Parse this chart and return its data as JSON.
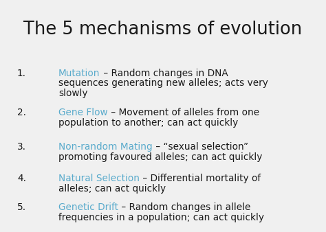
{
  "title": "The 5 mechanisms of evolution",
  "background_color": "#f0f0f0",
  "title_color": "#1a1a1a",
  "title_fontsize": 18.5,
  "body_fontsize": 9.8,
  "number_color": "#1a1a1a",
  "highlight_color": "#5aabcc",
  "text_color": "#1a1a1a",
  "items": [
    {
      "number": "1.",
      "keyword": "Mutation",
      "rest1": " – Random changes in DNA",
      "rest2": "sequences generating new alleles; acts very",
      "rest3": "slowly"
    },
    {
      "number": "2.",
      "keyword": "Gene Flow",
      "rest1": " – Movement of alleles from one",
      "rest2": "population to another; can act quickly",
      "rest3": ""
    },
    {
      "number": "3.",
      "keyword": "Non-random Mating",
      "rest1": " – “sexual selection”",
      "rest2": "promoting favoured alleles; can act quickly",
      "rest3": ""
    },
    {
      "number": "4.",
      "keyword": "Natural Selection",
      "rest1": " – Differential mortality of",
      "rest2": "alleles; can act quickly",
      "rest3": ""
    },
    {
      "number": "5.",
      "keyword": "Genetic Drift",
      "rest1": " – Random changes in allele",
      "rest2": "frequencies in a population; can act quickly",
      "rest3": ""
    }
  ]
}
